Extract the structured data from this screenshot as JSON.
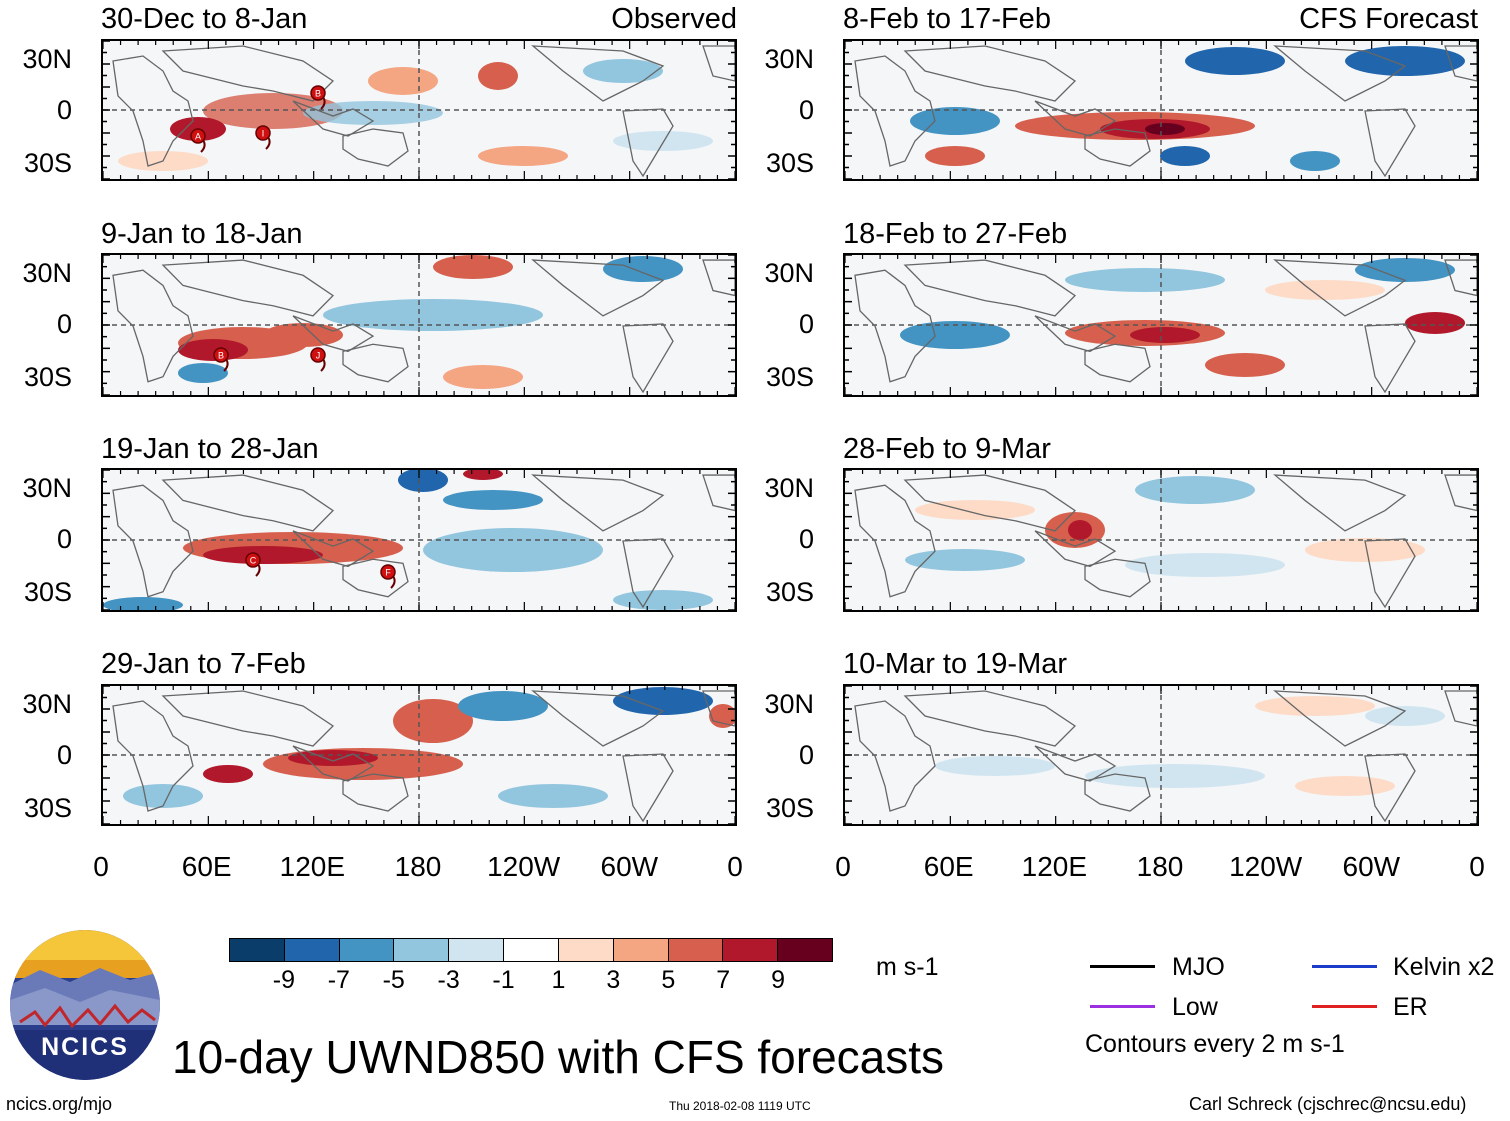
{
  "left_header": "Observed",
  "right_header": "CFS Forecast",
  "panels": [
    {
      "title": "30-Dec to 8-Jan"
    },
    {
      "title": "9-Jan to 18-Jan"
    },
    {
      "title": "19-Jan to 28-Jan"
    },
    {
      "title": "29-Jan to 7-Feb"
    },
    {
      "title": "8-Feb to 17-Feb"
    },
    {
      "title": "18-Feb to 27-Feb"
    },
    {
      "title": "28-Feb to 9-Mar"
    },
    {
      "title": "10-Mar to 19-Mar"
    }
  ],
  "y_axis": [
    "30N",
    "0",
    "30S"
  ],
  "x_axis": [
    "0",
    "60E",
    "120E",
    "180",
    "120W",
    "60W",
    "0"
  ],
  "colorbar": {
    "labels": [
      "-9",
      "-7",
      "-5",
      "-3",
      "-1",
      "1",
      "3",
      "5",
      "7",
      "9"
    ],
    "colors": [
      "#0b3d6b",
      "#2166ac",
      "#4393c3",
      "#92c5de",
      "#d1e5f0",
      "#ffffff",
      "#fddbc7",
      "#f4a582",
      "#d6604d",
      "#b2182b",
      "#67001f"
    ],
    "units": "m s-1"
  },
  "legend": {
    "items": [
      {
        "label": "MJO",
        "color": "#000000"
      },
      {
        "label": "Kelvin x2",
        "color": "#1a3cc8"
      },
      {
        "label": "Low",
        "color": "#9b30e0"
      },
      {
        "label": "ER",
        "color": "#e02020"
      }
    ],
    "contour_note": "Contours every 2 m s-1"
  },
  "main_title": "10-day UWND850 with CFS forecasts",
  "logo_text": "NCICS",
  "footer": {
    "left": "ncics.org/mjo",
    "center": "Thu 2018-02-08 1119 UTC",
    "right": "Carl Schreck (cjschrec@ncsu.edu)"
  },
  "storm_markers": [
    {
      "panel": 0,
      "label": "A"
    },
    {
      "panel": 0,
      "label": "I"
    },
    {
      "panel": 0,
      "label": "B"
    },
    {
      "panel": 1,
      "label": "B"
    },
    {
      "panel": 1,
      "label": "J"
    },
    {
      "panel": 2,
      "label": "C"
    },
    {
      "panel": 2,
      "label": "F"
    }
  ]
}
